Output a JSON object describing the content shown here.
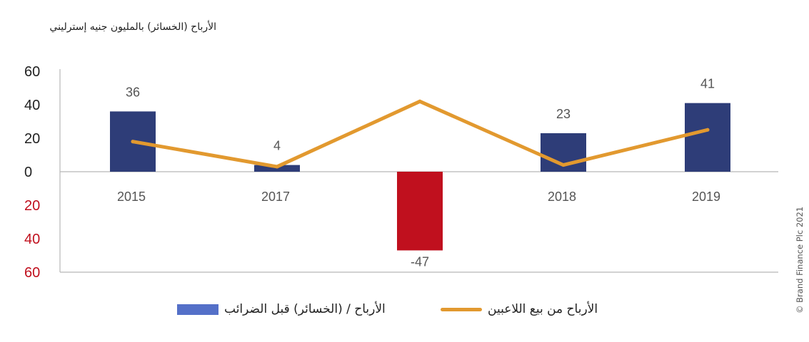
{
  "header": {
    "title": "الأرباح (الخسائر) بالمليون جنيه إسترليني",
    "copyright": "© Brand Finance Plc 2021"
  },
  "legend": {
    "bars_label": "الأرباح / (الخسائر) قبل الضرائب",
    "line_label": "الأرباح من بيع اللاعبين"
  },
  "chart_data": {
    "type": "bar",
    "categories": [
      "2015",
      "2017",
      "",
      "2018",
      "2019"
    ],
    "series": [
      {
        "name": "الأرباح / (الخسائر) قبل الضرائب",
        "type": "bar",
        "values": [
          36,
          4,
          -47,
          23,
          41
        ],
        "data_labels": [
          "36",
          "4",
          "-47",
          "23",
          "41"
        ],
        "color": "#2e3d78",
        "negative_color": "#c0101e"
      },
      {
        "name": "الأرباح من بيع اللاعبين",
        "type": "line",
        "values": [
          18,
          3,
          42,
          4,
          25
        ],
        "color": "#e2992f"
      }
    ],
    "y_ticks": [
      {
        "value": 60,
        "label": "60",
        "color": "#222222"
      },
      {
        "value": 40,
        "label": "40",
        "color": "#222222"
      },
      {
        "value": 20,
        "label": "20",
        "color": "#222222"
      },
      {
        "value": 0,
        "label": "0",
        "color": "#222222"
      },
      {
        "value": -20,
        "label": "20",
        "color": "#c0101e"
      },
      {
        "value": -40,
        "label": "40",
        "color": "#c0101e"
      },
      {
        "value": -60,
        "label": "60",
        "color": "#c0101e"
      }
    ],
    "ylim": [
      -60,
      60
    ],
    "xlabel": "",
    "ylabel": "",
    "grid": false,
    "legend_position": "bottom"
  }
}
